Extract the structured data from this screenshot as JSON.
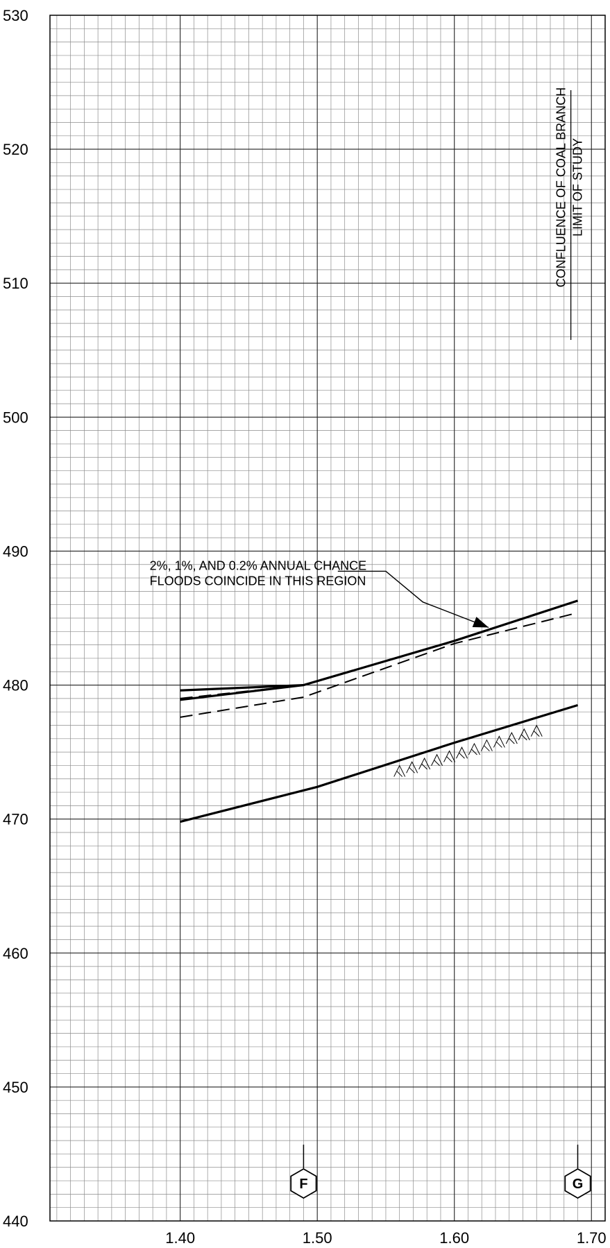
{
  "chart_data": {
    "type": "line",
    "title": "",
    "xlabel": "",
    "ylabel": "",
    "xlim": [
      1.305,
      1.71
    ],
    "ylim": [
      440,
      530
    ],
    "x_ticks": [
      1.4,
      1.5,
      1.6,
      1.7
    ],
    "x_tick_labels": [
      "1.40",
      "1.50",
      "1.60",
      "1.70"
    ],
    "y_ticks": [
      440,
      450,
      460,
      470,
      480,
      490,
      500,
      510,
      520,
      530
    ],
    "y_tick_labels": [
      "440",
      "450",
      "460",
      "470",
      "480",
      "490",
      "500",
      "510",
      "520",
      "530"
    ],
    "grid": true,
    "series": [
      {
        "style": "solid-bold",
        "points": [
          [
            1.4,
            479.6
          ],
          [
            1.49,
            480.0
          ]
        ]
      },
      {
        "style": "solid-bold",
        "points": [
          [
            1.4,
            478.9
          ],
          [
            1.49,
            480.0
          ],
          [
            1.6,
            483.3
          ],
          [
            1.69,
            486.3
          ]
        ]
      },
      {
        "style": "dashed",
        "points": [
          [
            1.4,
            479.0
          ],
          [
            1.49,
            480.0
          ]
        ]
      },
      {
        "style": "dashed",
        "points": [
          [
            1.4,
            477.6
          ],
          [
            1.49,
            479.1
          ],
          [
            1.6,
            483.1
          ],
          [
            1.69,
            485.4
          ]
        ]
      },
      {
        "style": "solid-bold",
        "points": [
          [
            1.4,
            469.8
          ],
          [
            1.5,
            472.4
          ],
          [
            1.6,
            475.7
          ],
          [
            1.69,
            478.5
          ]
        ]
      }
    ],
    "channel_hatch": [
      [
        1.56,
        474.2
      ],
      [
        1.66,
        477.2
      ]
    ],
    "annotations": [
      {
        "lines": [
          "2%, 1%, AND 0.2% ANNUAL CHANCE",
          "FLOODS COINCIDE IN THIS REGION"
        ],
        "text_at": [
          1.4,
          488.6
        ],
        "leader": [
          [
            1.515,
            488.5
          ],
          [
            1.55,
            488.5
          ],
          [
            1.577,
            486.2
          ],
          [
            1.625,
            484.3
          ]
        ]
      },
      {
        "lines": [
          "CONFLUENCE OF COAL BRANCH",
          "LIMIT OF STUDY"
        ],
        "at_x": 1.685,
        "vertical": true
      }
    ],
    "cross_sections": [
      {
        "label": "F",
        "x": 1.49
      },
      {
        "label": "G",
        "x": 1.69
      }
    ]
  }
}
